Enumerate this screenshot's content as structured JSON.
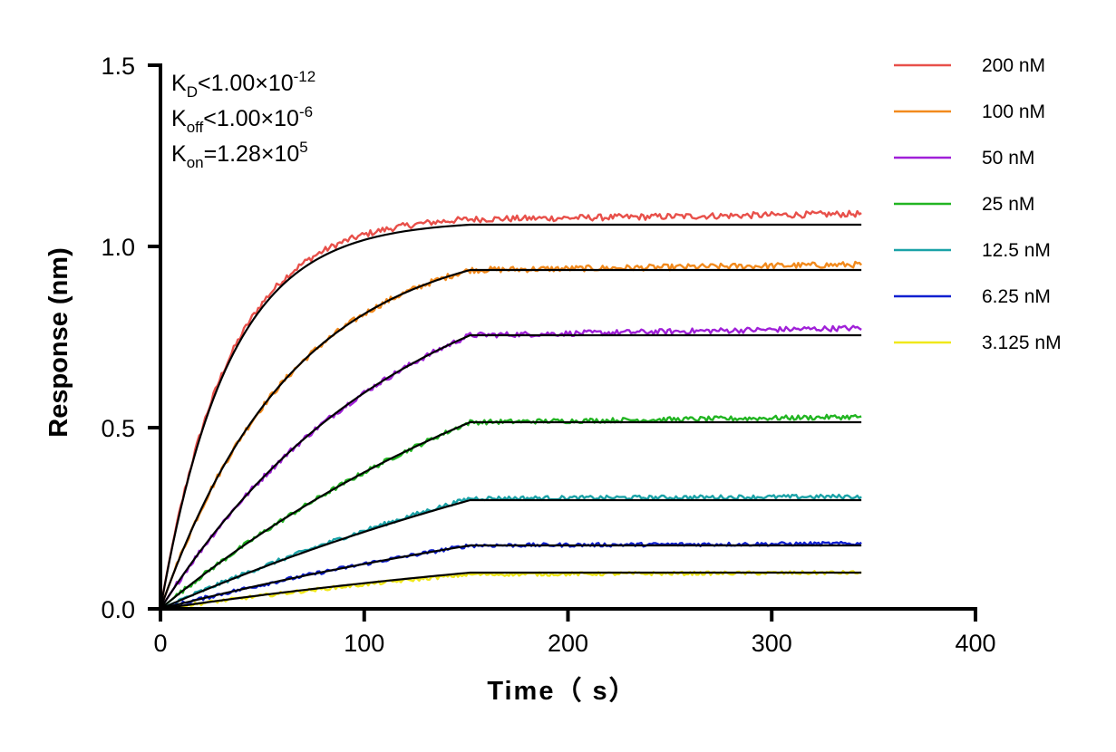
{
  "chart_data": {
    "type": "line",
    "xlabel": "Time（ s）",
    "ylabel": "Response (nm)",
    "xlim": [
      0,
      400
    ],
    "ylim": [
      0,
      1.5
    ],
    "x_ticks": [
      "0",
      "100",
      "200",
      "300",
      "400"
    ],
    "y_ticks": [
      "0.0",
      "0.5",
      "1.0",
      "1.5"
    ],
    "grid": false,
    "legend_position": "top-right",
    "annotations": [
      {
        "base": "K",
        "sub": "D",
        "rel": "<1.00×10",
        "sup": "-12"
      },
      {
        "base": "K",
        "sub": "off",
        "rel": "<1.00×10",
        "sup": "-6"
      },
      {
        "base": "K",
        "sub": "on",
        "rel": "=1.28×10",
        "sup": "5"
      }
    ],
    "association_end_s": 152,
    "end_time_s": 344,
    "series": [
      {
        "name": "200 nM",
        "color": "#e8504a",
        "fit_plateau": 1.06,
        "fit_rate": 0.03,
        "meas_plateau": 1.075,
        "meas_end": 1.09
      },
      {
        "name": "100 nM",
        "color": "#f28a1d",
        "fit_plateau": 0.935,
        "fit_rate": 0.0155,
        "meas_plateau": 0.935,
        "meas_end": 0.95
      },
      {
        "name": "50 nM",
        "color": "#a020d8",
        "fit_plateau": 0.755,
        "fit_rate": 0.0085,
        "meas_plateau": 0.755,
        "meas_end": 0.775
      },
      {
        "name": "25 nM",
        "color": "#22b522",
        "fit_plateau": 0.515,
        "fit_rate": 0.0045,
        "meas_plateau": 0.515,
        "meas_end": 0.53
      },
      {
        "name": "12.5 nM",
        "color": "#1aa3a8",
        "fit_plateau": 0.3,
        "fit_rate": 0.003,
        "meas_plateau": 0.305,
        "meas_end": 0.31
      },
      {
        "name": "6.25 nM",
        "color": "#1020d0",
        "fit_plateau": 0.175,
        "fit_rate": 0.003,
        "meas_plateau": 0.175,
        "meas_end": 0.18
      },
      {
        "name": "3.125 nM",
        "color": "#f0e81a",
        "fit_plateau": 0.1,
        "fit_rate": 0.003,
        "meas_plateau": 0.095,
        "meas_end": 0.1
      }
    ],
    "fit_color": "#000000"
  }
}
